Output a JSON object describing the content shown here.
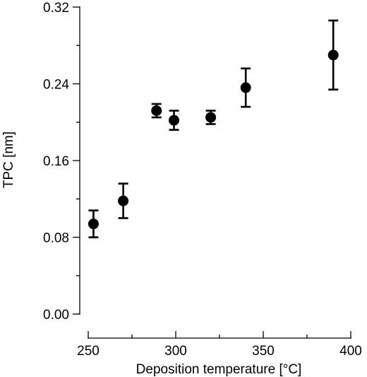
{
  "chart_data": {
    "type": "scatter",
    "xlabel": "Deposition temperature [°C]",
    "ylabel": "TPC [nm]",
    "xlim": [
      250,
      400
    ],
    "ylim": [
      0.0,
      0.32
    ],
    "x_ticks": [
      250,
      300,
      350,
      400
    ],
    "y_ticks": [
      0.0,
      0.08,
      0.16,
      0.24,
      0.32
    ],
    "x_tick_labels": [
      "250",
      "300",
      "350",
      "400"
    ],
    "y_tick_labels": [
      "0.00",
      "0.08",
      "0.16",
      "0.24",
      "0.32"
    ],
    "grid": false,
    "points": [
      {
        "x": 253,
        "y": 0.094,
        "err": 0.014
      },
      {
        "x": 270,
        "y": 0.118,
        "err": 0.018
      },
      {
        "x": 289,
        "y": 0.212,
        "err": 0.007
      },
      {
        "x": 299,
        "y": 0.202,
        "err": 0.01
      },
      {
        "x": 320,
        "y": 0.205,
        "err": 0.007
      },
      {
        "x": 340,
        "y": 0.236,
        "err": 0.02
      },
      {
        "x": 390,
        "y": 0.27,
        "err": 0.036
      }
    ],
    "marker_color": "#000000"
  }
}
